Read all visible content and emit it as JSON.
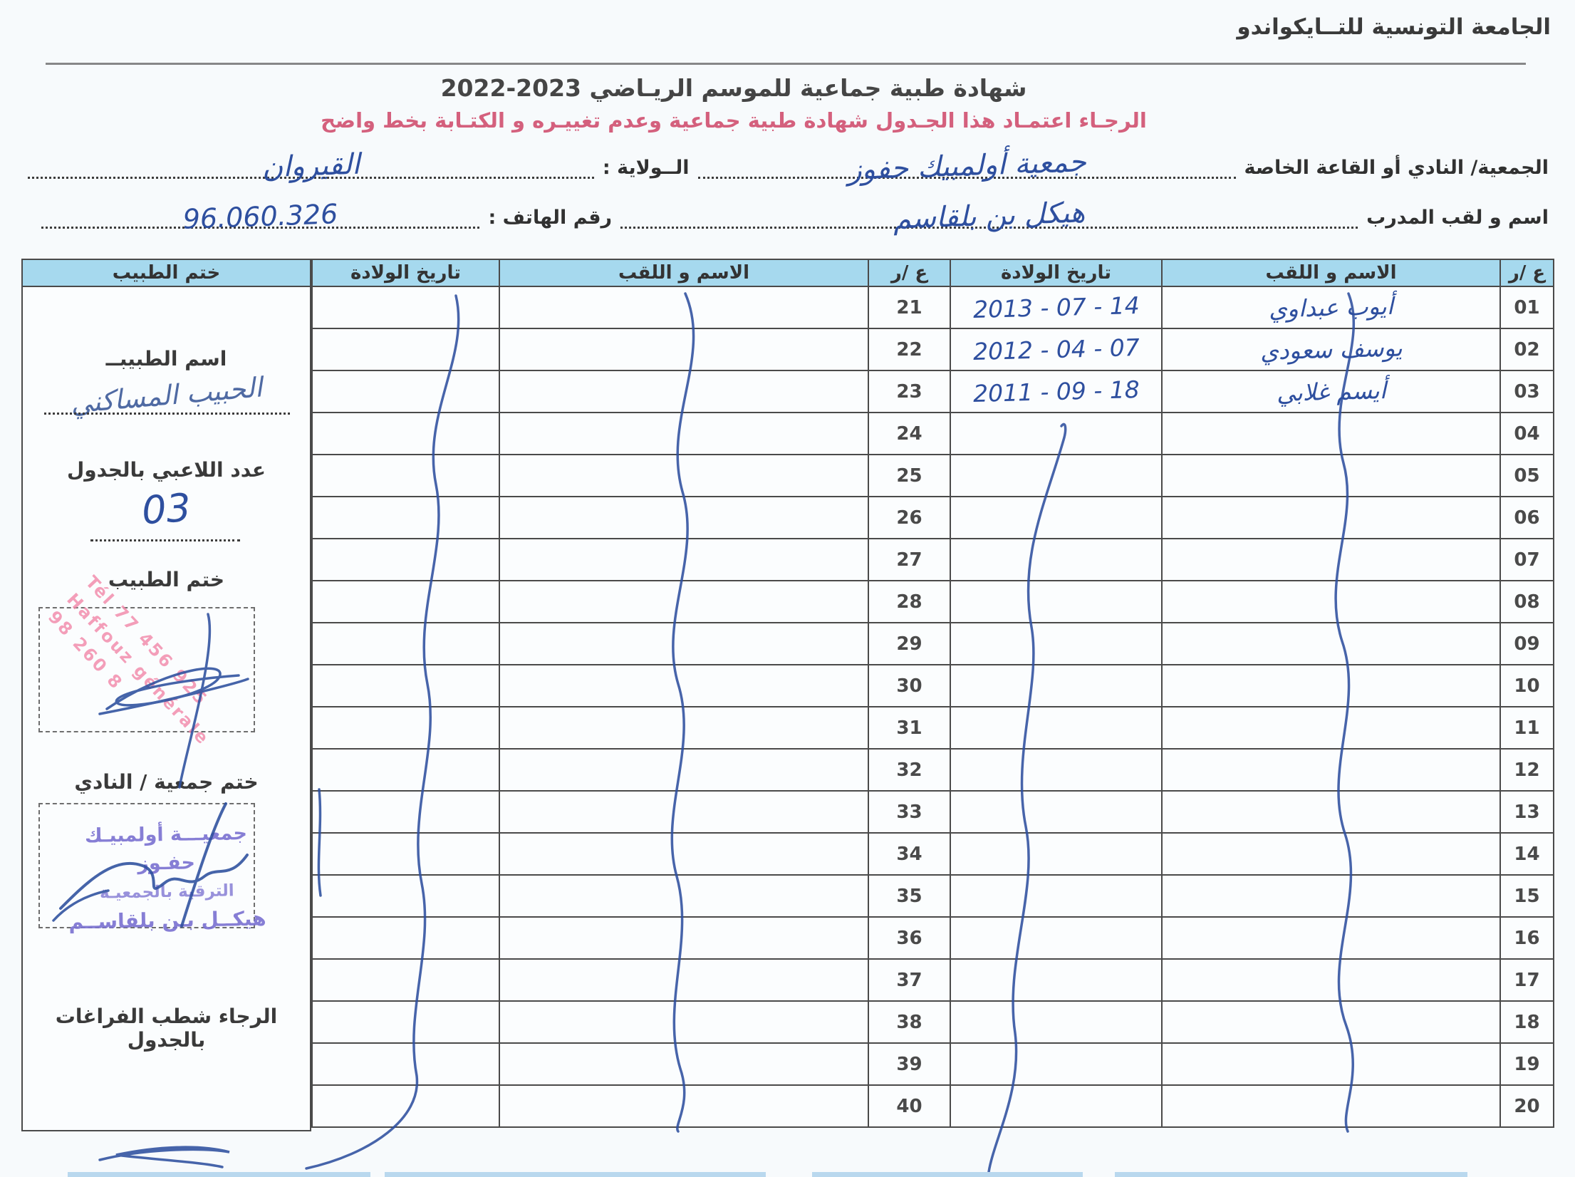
{
  "header": {
    "org_title": "الجامعة التونسية للتــايكواندو",
    "doc_title": "شهادة طبية جماعية   للموسم الريـاضي 2023-2022",
    "notice": "الرجـاء اعتمـاد هذا الجـدول  شهادة طبية جماعية وعدم تغييـره و الكتـابة بخط واضح"
  },
  "form": {
    "club_label": "الجمعية/ النادي أو القاعة الخاصة",
    "club_value": "جمعية أولمبيك حفوز",
    "wilaya_label": "الــولاية :",
    "wilaya_value": "القيروان",
    "coach_label": "اسم و لقب المدرب",
    "coach_value": "هيكل بن بلقاسم",
    "phone_label": "رقم الهاتف  :",
    "phone_value": "96.060.326"
  },
  "table": {
    "headers": {
      "num": "ع /ر",
      "name": "الاسم و اللقب",
      "dob": "تاريخ الولادة",
      "stamp": "ختم الطبيب"
    },
    "rows": [
      {
        "n": "01",
        "name": "أيوب عبداوي",
        "dob": "2013 - 07 - 14",
        "n2": "21",
        "name2": "",
        "dob2": ""
      },
      {
        "n": "02",
        "name": "يوسف سعودي",
        "dob": "2012 - 04 - 07",
        "n2": "22",
        "name2": "",
        "dob2": ""
      },
      {
        "n": "03",
        "name": "أيسم غلابي",
        "dob": "2011 - 09 - 18",
        "n2": "23",
        "name2": "",
        "dob2": ""
      },
      {
        "n": "04",
        "name": "",
        "dob": "",
        "n2": "24",
        "name2": "",
        "dob2": ""
      },
      {
        "n": "05",
        "name": "",
        "dob": "",
        "n2": "25",
        "name2": "",
        "dob2": ""
      },
      {
        "n": "06",
        "name": "",
        "dob": "",
        "n2": "26",
        "name2": "",
        "dob2": ""
      },
      {
        "n": "07",
        "name": "",
        "dob": "",
        "n2": "27",
        "name2": "",
        "dob2": ""
      },
      {
        "n": "08",
        "name": "",
        "dob": "",
        "n2": "28",
        "name2": "",
        "dob2": ""
      },
      {
        "n": "09",
        "name": "",
        "dob": "",
        "n2": "29",
        "name2": "",
        "dob2": ""
      },
      {
        "n": "10",
        "name": "",
        "dob": "",
        "n2": "30",
        "name2": "",
        "dob2": ""
      },
      {
        "n": "11",
        "name": "",
        "dob": "",
        "n2": "31",
        "name2": "",
        "dob2": ""
      },
      {
        "n": "12",
        "name": "",
        "dob": "",
        "n2": "32",
        "name2": "",
        "dob2": ""
      },
      {
        "n": "13",
        "name": "",
        "dob": "",
        "n2": "33",
        "name2": "",
        "dob2": ""
      },
      {
        "n": "14",
        "name": "",
        "dob": "",
        "n2": "34",
        "name2": "",
        "dob2": ""
      },
      {
        "n": "15",
        "name": "",
        "dob": "",
        "n2": "35",
        "name2": "",
        "dob2": ""
      },
      {
        "n": "16",
        "name": "",
        "dob": "",
        "n2": "36",
        "name2": "",
        "dob2": ""
      },
      {
        "n": "17",
        "name": "",
        "dob": "",
        "n2": "37",
        "name2": "",
        "dob2": ""
      },
      {
        "n": "18",
        "name": "",
        "dob": "",
        "n2": "38",
        "name2": "",
        "dob2": ""
      },
      {
        "n": "19",
        "name": "",
        "dob": "",
        "n2": "39",
        "name2": "",
        "dob2": ""
      },
      {
        "n": "20",
        "name": "",
        "dob": "",
        "n2": "40",
        "name2": "",
        "dob2": ""
      }
    ]
  },
  "side": {
    "doctor_name_label": "اسم الطبيبــ",
    "doctor_signature": "الحبيب المساكني",
    "players_label": "عدد اللاعبي بالجدول",
    "players_value": "03",
    "doctor_stamp_label": "ختم الطبيب",
    "club_stamp_label": "ختم جمعية / النادي",
    "note": "الرجاء شطب  الفراغات بالجدول"
  },
  "stamps": {
    "pink_lines": [
      "Tél 77 456 925",
      "Haffouz  générale",
      "98 260 8"
    ],
    "club_lines": [
      "جمعيـــة أولمبيـك حفـوز",
      "الترقية بالجمعيـة",
      "هيكــل بـن بلقاســم"
    ]
  },
  "colors": {
    "header_blue": "#a6d9ee",
    "pen_blue": "#2e4f9f",
    "notice_red": "#d4607d",
    "stamp_pink": "#f287a8",
    "stamp_purple": "#7d74d2"
  }
}
